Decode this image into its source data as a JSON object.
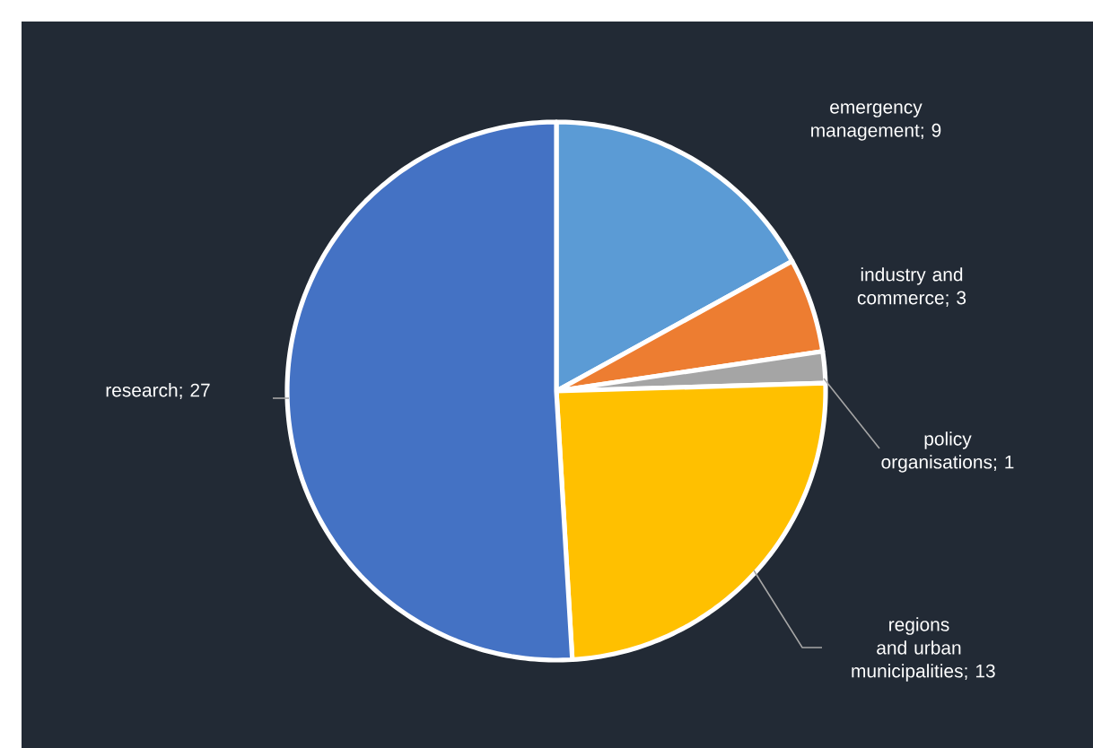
{
  "chart_data": {
    "type": "pie",
    "categories": [
      "emergency management",
      "industry and commerce",
      "policy organisations",
      "regions and urban municipalities",
      "research"
    ],
    "values": [
      9,
      3,
      1,
      13,
      27
    ],
    "colors": [
      "#5b9bd5",
      "#ed7d31",
      "#a5a5a5",
      "#ffc000",
      "#4472c4"
    ],
    "value_labels": [
      "; 9",
      "; 3",
      "; 1",
      "; 13",
      "; 27"
    ]
  }
}
